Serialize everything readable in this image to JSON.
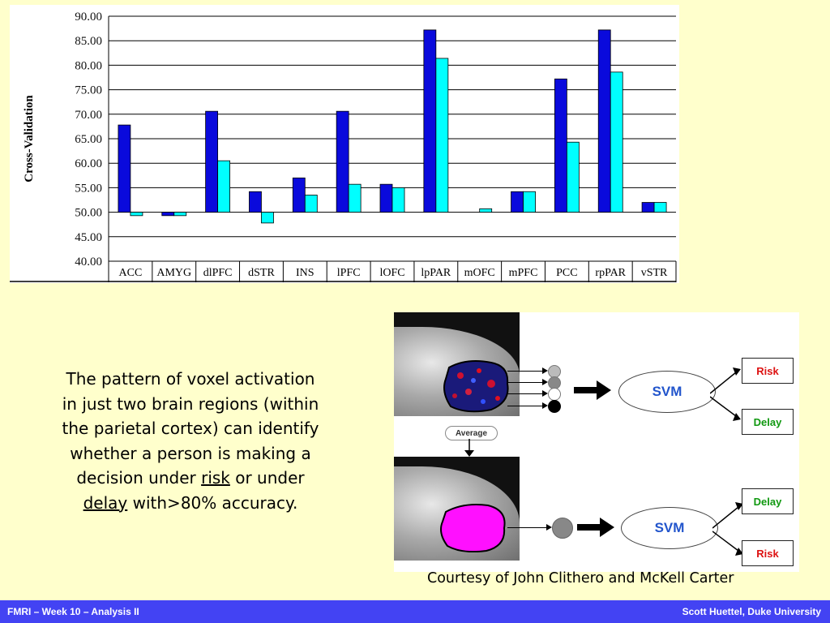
{
  "chart_data": {
    "type": "bar",
    "ylabel": "Cross-Validation",
    "xlabel": "",
    "ylim": [
      40,
      90
    ],
    "yticks": [
      "40.00",
      "45.00",
      "50.00",
      "55.00",
      "60.00",
      "65.00",
      "70.00",
      "75.00",
      "80.00",
      "85.00",
      "90.00"
    ],
    "baseline": 50,
    "categories": [
      "ACC",
      "AMYG",
      "dlPFC",
      "dSTR",
      "INS",
      "lPFC",
      "lOFC",
      "lpPAR",
      "mOFC",
      "mPFC",
      "PCC",
      "rpPAR",
      "vSTR"
    ],
    "series": [
      {
        "values": [
          67.8,
          49.3,
          70.6,
          54.2,
          57.0,
          70.6,
          55.7,
          87.2,
          50.0,
          54.2,
          77.2,
          87.2,
          52.0
        ],
        "color": "#0a0adc"
      },
      {
        "values": [
          49.3,
          49.3,
          60.5,
          47.8,
          53.5,
          55.7,
          55.0,
          81.4,
          50.7,
          54.2,
          64.3,
          78.6,
          52.0
        ],
        "color": "#00ffff"
      }
    ],
    "grid": true
  },
  "text": {
    "line1": "The pattern of voxel activation",
    "line2": "in just two brain regions (within",
    "line3": "the parietal cortex) can identify",
    "line4": "whether a person is making a",
    "line5a": "decision under ",
    "risk_word": "risk",
    "line5b": " or under",
    "delay_word": "delay",
    "line6b": " with>80% accuracy."
  },
  "figure": {
    "svm_label": "SVM",
    "average_label": "Average",
    "top_outputs": [
      {
        "label": "Risk",
        "color": "#dd1111"
      },
      {
        "label": "Delay",
        "color": "#119911"
      }
    ],
    "bottom_outputs": [
      {
        "label": "Delay",
        "color": "#119911"
      },
      {
        "label": "Risk",
        "color": "#dd1111"
      }
    ]
  },
  "credit": "Courtesy of John Clithero and McKell Carter",
  "footer": {
    "left": "FMRI – Week 10 – Analysis II",
    "right": "Scott Huettel, Duke University"
  }
}
